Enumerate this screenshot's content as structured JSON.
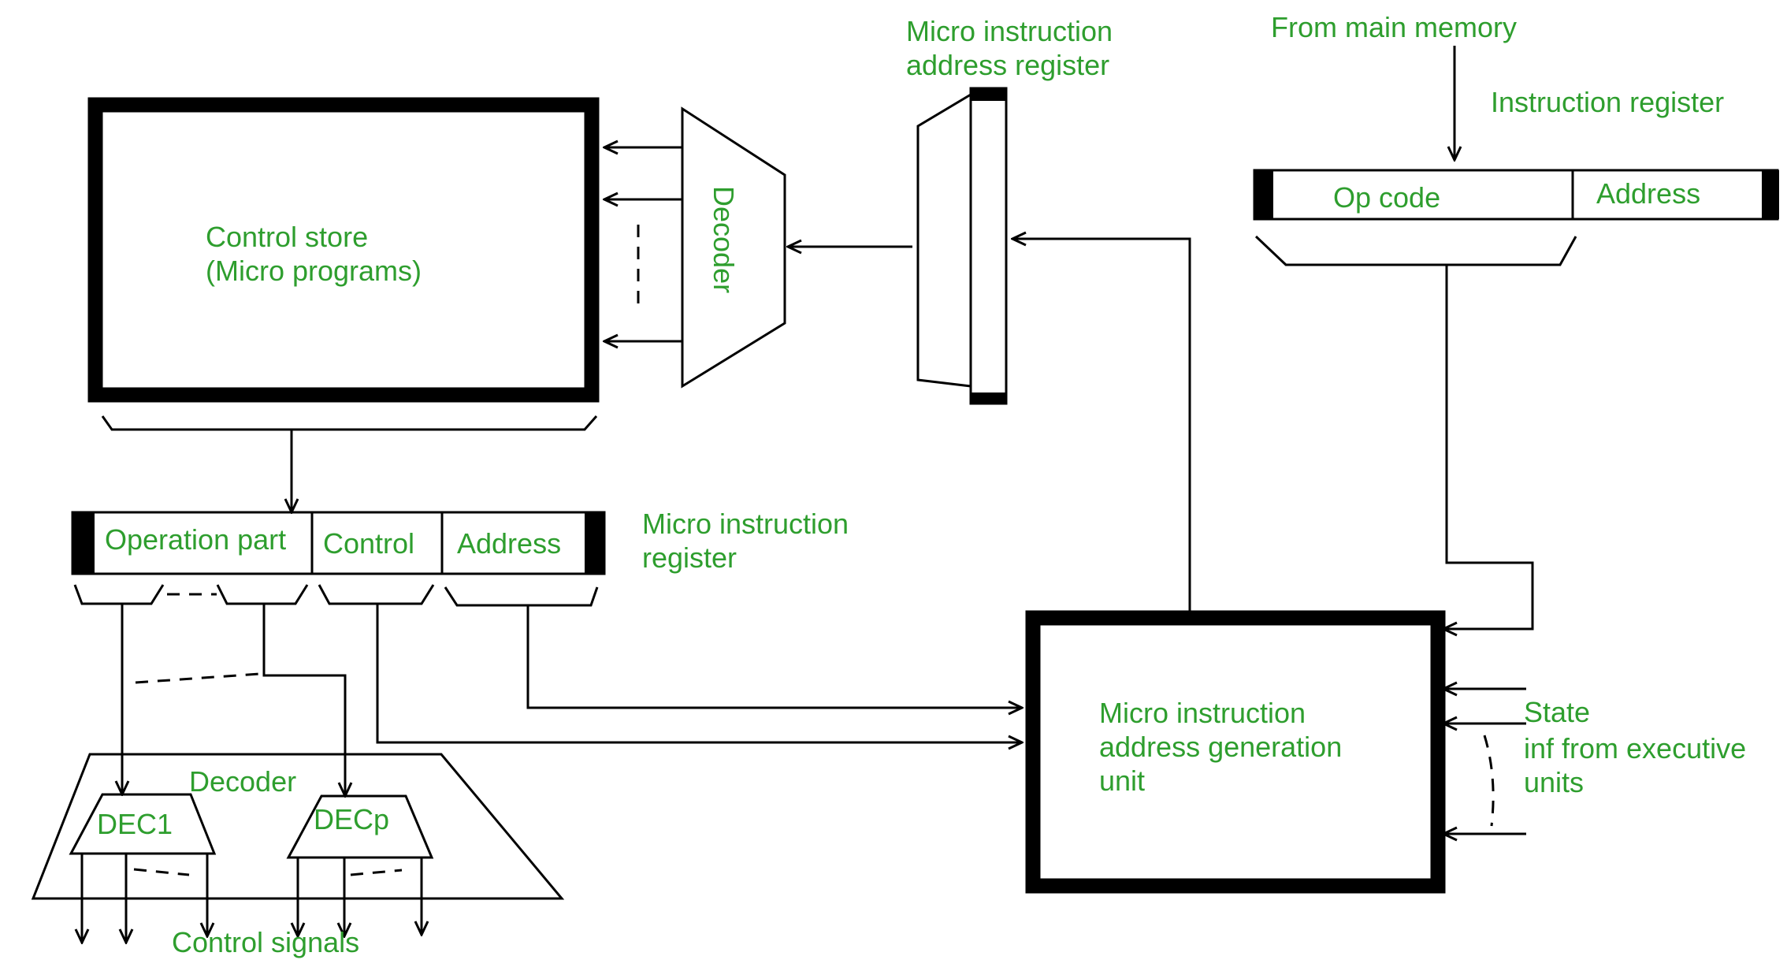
{
  "colors": {
    "label": "#2e9e2e",
    "line": "#000000",
    "background": "#ffffff"
  },
  "labels": {
    "control_store_line1": "Control store",
    "control_store_line2": "(Micro programs)",
    "decoder_vertical": "Decoder",
    "miar_title_line1": "Micro instruction",
    "miar_title_line2": "address register",
    "from_main_memory": "From main memory",
    "instruction_register": "Instruction register",
    "op_code": "Op code",
    "ir_address": "Address",
    "operation_part": "Operation part",
    "control_field": "Control",
    "mir_address": "Address",
    "mir_title_line1": "Micro instruction",
    "mir_title_line2": "register",
    "decoder_bottom": "Decoder",
    "dec1": "DEC1",
    "decp": "DECp",
    "control_signals": "Control signals",
    "magu_line1": "Micro instruction",
    "magu_line2": "address generation",
    "magu_line3": "unit",
    "state_line1": "State",
    "state_line2": "inf from executive",
    "state_line3": "units"
  }
}
